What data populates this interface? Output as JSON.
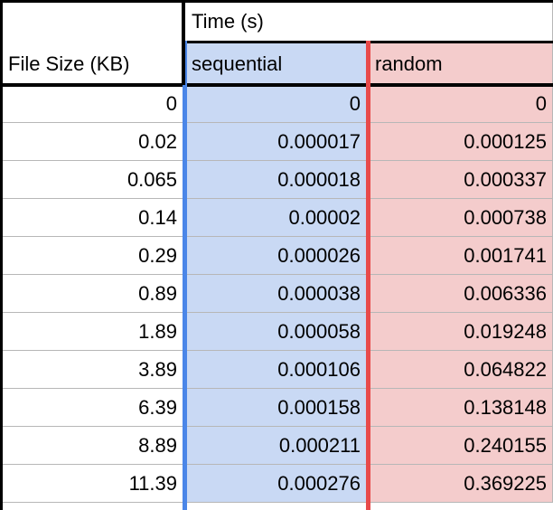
{
  "table": {
    "header": {
      "row_label": "File Size (KB)",
      "group_label": "Time (s)",
      "columns": [
        "sequential",
        "random"
      ]
    },
    "rows": [
      {
        "size": "0",
        "sequential": "0",
        "random": "0"
      },
      {
        "size": "0.02",
        "sequential": "0.000017",
        "random": "0.000125"
      },
      {
        "size": "0.065",
        "sequential": "0.000018",
        "random": "0.000337"
      },
      {
        "size": "0.14",
        "sequential": "0.00002",
        "random": "0.000738"
      },
      {
        "size": "0.29",
        "sequential": "0.000026",
        "random": "0.001741"
      },
      {
        "size": "0.89",
        "sequential": "0.000038",
        "random": "0.006336"
      },
      {
        "size": "1.89",
        "sequential": "0.000058",
        "random": "0.019248"
      },
      {
        "size": "3.89",
        "sequential": "0.000106",
        "random": "0.064822"
      },
      {
        "size": "6.39",
        "sequential": "0.000158",
        "random": "0.138148"
      },
      {
        "size": "8.89",
        "sequential": "0.000211",
        "random": "0.240155"
      },
      {
        "size": "11.39",
        "sequential": "0.000276",
        "random": "0.369225"
      }
    ]
  },
  "colors": {
    "sequential_fill": "#c9d9f4",
    "sequential_border": "#4a86e8",
    "random_fill": "#f4cccc",
    "random_border": "#e84a4a"
  }
}
